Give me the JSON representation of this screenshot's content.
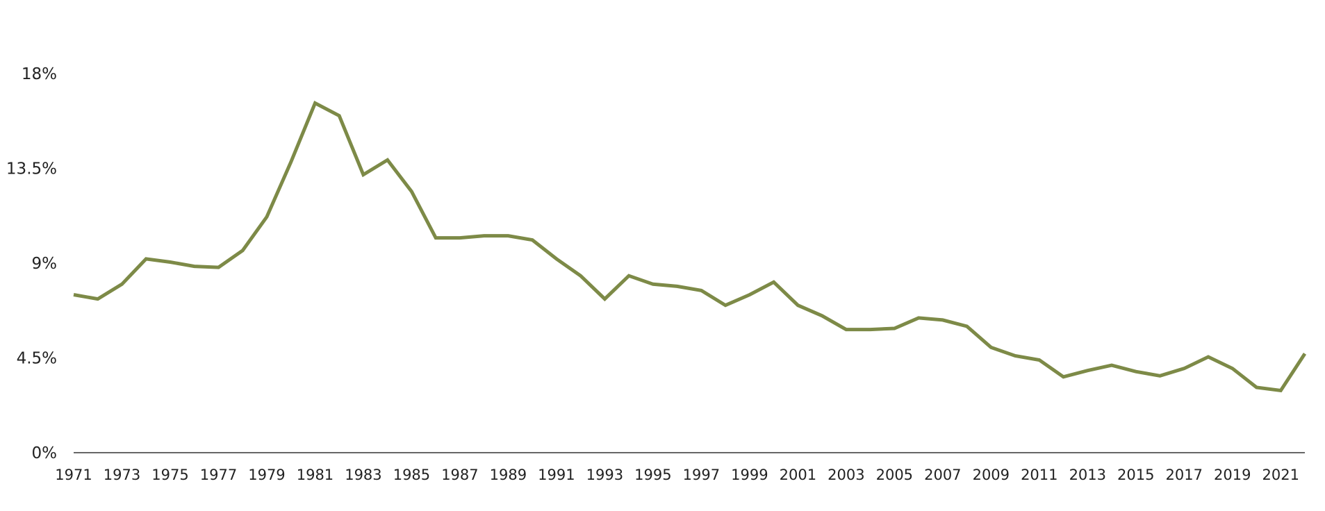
{
  "chart_data": {
    "type": "line",
    "title": "",
    "xlabel": "",
    "ylabel": "",
    "x": [
      1971,
      1972,
      1973,
      1974,
      1975,
      1976,
      1977,
      1978,
      1979,
      1980,
      1981,
      1982,
      1983,
      1984,
      1985,
      1986,
      1987,
      1988,
      1989,
      1990,
      1991,
      1992,
      1993,
      1994,
      1995,
      1996,
      1997,
      1998,
      1999,
      2000,
      2001,
      2002,
      2003,
      2004,
      2005,
      2006,
      2007,
      2008,
      2009,
      2010,
      2011,
      2012,
      2013,
      2014,
      2015,
      2016,
      2017,
      2018,
      2019,
      2020,
      2021,
      2022
    ],
    "series": [
      {
        "values": [
          7.5,
          7.3,
          8.0,
          9.2,
          9.05,
          8.85,
          8.8,
          9.6,
          11.2,
          13.8,
          16.6,
          16.0,
          13.2,
          13.9,
          12.4,
          10.2,
          10.2,
          10.3,
          10.3,
          10.1,
          9.2,
          8.4,
          7.3,
          8.4,
          8.0,
          7.9,
          7.7,
          7.0,
          7.5,
          8.1,
          7.0,
          6.5,
          5.85,
          5.85,
          5.9,
          6.4,
          6.3,
          6.0,
          5.0,
          4.6,
          4.4,
          3.6,
          3.9,
          4.15,
          3.85,
          3.65,
          4.0,
          4.55,
          4.0,
          3.1,
          2.95,
          4.7
        ]
      }
    ],
    "x_tick_labels": [
      "1971",
      "1973",
      "1975",
      "1977",
      "1979",
      "1981",
      "1983",
      "1985",
      "1987",
      "1989",
      "1991",
      "1993",
      "1995",
      "1997",
      "1999",
      "2001",
      "2003",
      "2005",
      "2007",
      "2009",
      "2011",
      "2013",
      "2015",
      "2017",
      "2019",
      "2021"
    ],
    "y_ticks": [
      0,
      4.5,
      9,
      13.5,
      18
    ],
    "y_tick_labels": [
      "0%",
      "4.5%",
      "9%",
      "13.5%",
      "18%"
    ],
    "xlim": [
      1971,
      2022
    ],
    "ylim": [
      0,
      18
    ],
    "grid": false,
    "legend": "none",
    "colors": {
      "line": "#7d8a47",
      "axis": "#333333",
      "text": "#222222"
    }
  }
}
